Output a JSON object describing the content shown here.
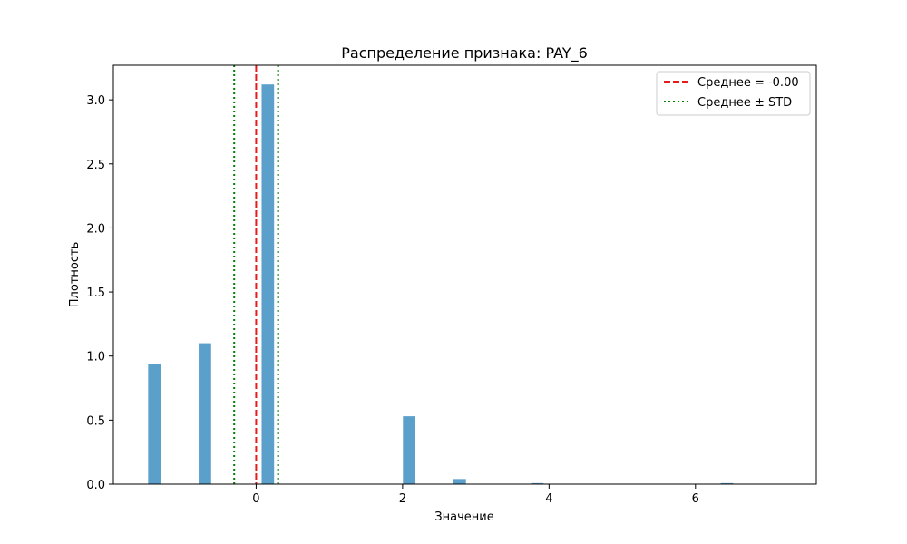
{
  "chart_data": {
    "type": "bar",
    "title": "Распределение признака: PAY_6",
    "xlabel": "Значение",
    "ylabel": "Плотность",
    "xlim": [
      -1.95,
      7.65
    ],
    "ylim": [
      0,
      3.27
    ],
    "x_ticks": [
      0,
      2,
      4,
      6
    ],
    "y_ticks": [
      0.0,
      0.5,
      1.0,
      1.5,
      2.0,
      2.5,
      3.0
    ],
    "y_tick_labels": [
      "0.0",
      "0.5",
      "1.0",
      "1.5",
      "2.0",
      "2.5",
      "3.0"
    ],
    "bar_width": 0.17,
    "bars": [
      {
        "x": -1.39,
        "value": 0.94
      },
      {
        "x": -0.7,
        "value": 1.1
      },
      {
        "x": 0.16,
        "value": 3.12
      },
      {
        "x": 2.09,
        "value": 0.53
      },
      {
        "x": 2.78,
        "value": 0.04
      },
      {
        "x": 3.84,
        "value": 0.008
      },
      {
        "x": 6.43,
        "value": 0.008
      }
    ],
    "bar_color": "#5b9fcb",
    "mean_line": {
      "label": "Среднее = -0.00",
      "value": 0.0,
      "color": "#e41a1c",
      "style": "dashed"
    },
    "std_lines": {
      "label": "Среднее ± STD",
      "values": [
        -0.3,
        0.3
      ],
      "color": "#008000",
      "style": "dotted"
    },
    "legend_position": "top-right"
  }
}
